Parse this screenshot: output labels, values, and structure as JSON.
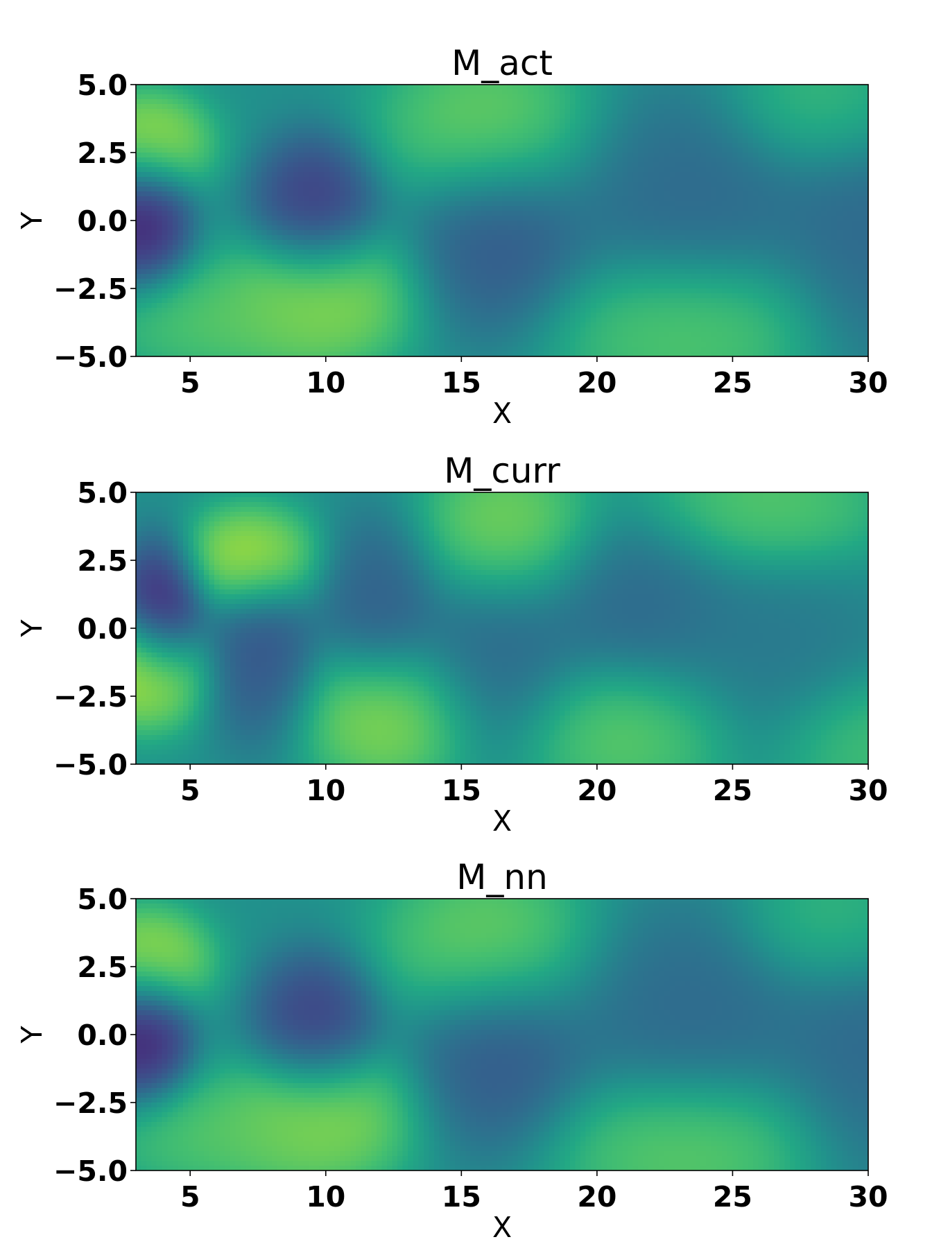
{
  "chart_data": [
    {
      "type": "heatmap",
      "title": "M_act",
      "xlabel": "X",
      "ylabel": "Y",
      "xlim": [
        3,
        30
      ],
      "ylim": [
        -5,
        5
      ],
      "xticks": [
        5,
        10,
        15,
        20,
        25,
        30
      ],
      "yticks": [
        5.0,
        2.5,
        0.0,
        -2.5,
        -5.0
      ],
      "xtick_labels": [
        "5",
        "10",
        "15",
        "20",
        "25",
        "30"
      ],
      "ytick_labels": [
        "5.0",
        "2.5",
        "0.0",
        "−2.5",
        "−5.0"
      ],
      "colormap": "viridis",
      "value_range": [
        0,
        1
      ],
      "background_value": 0.5,
      "features": [
        {
          "x": 3.4,
          "y": 2.8,
          "value": 1.0,
          "sx": 1.3,
          "sy": 1.1
        },
        {
          "x": 3.2,
          "y": 0.2,
          "value": 0.0,
          "sx": 1.0,
          "sy": 1.5
        },
        {
          "x": 9.6,
          "y": 0.4,
          "value": 0.08,
          "sx": 1.3,
          "sy": 1.5
        },
        {
          "x": 9.8,
          "y": -2.8,
          "value": 0.93,
          "sx": 2.0,
          "sy": 1.5
        },
        {
          "x": 6.0,
          "y": -3.8,
          "value": 0.78,
          "sx": 2.4,
          "sy": 1.1
        },
        {
          "x": 16.0,
          "y": 3.5,
          "value": 0.85,
          "sx": 2.2,
          "sy": 1.7
        },
        {
          "x": 16.4,
          "y": -0.9,
          "value": 0.22,
          "sx": 1.8,
          "sy": 2.0
        },
        {
          "x": 23.5,
          "y": 1.0,
          "value": 0.3,
          "sx": 2.8,
          "sy": 2.2
        },
        {
          "x": 23.2,
          "y": -4.0,
          "value": 0.8,
          "sx": 2.8,
          "sy": 1.6
        },
        {
          "x": 30.0,
          "y": -0.5,
          "value": 0.3,
          "sx": 1.8,
          "sy": 2.8
        },
        {
          "x": 28.5,
          "y": 4.2,
          "value": 0.75,
          "sx": 2.0,
          "sy": 1.4
        }
      ]
    },
    {
      "type": "heatmap",
      "title": "M_curr",
      "xlabel": "X",
      "ylabel": "Y",
      "xlim": [
        3,
        30
      ],
      "ylim": [
        -5,
        5
      ],
      "xticks": [
        5,
        10,
        15,
        20,
        25,
        30
      ],
      "yticks": [
        5.0,
        2.5,
        0.0,
        -2.5,
        -5.0
      ],
      "xtick_labels": [
        "5",
        "10",
        "15",
        "20",
        "25",
        "30"
      ],
      "ytick_labels": [
        "5.0",
        "2.5",
        "0.0",
        "−2.5",
        "−5.0"
      ],
      "colormap": "viridis",
      "value_range": [
        0,
        1
      ],
      "background_value": 0.5,
      "features": [
        {
          "x": 4.0,
          "y": 0.8,
          "value": 0.0,
          "sx": 0.9,
          "sy": 1.4
        },
        {
          "x": 3.4,
          "y": -1.6,
          "value": 1.0,
          "sx": 1.3,
          "sy": 1.2
        },
        {
          "x": 7.2,
          "y": 2.5,
          "value": 1.0,
          "sx": 1.4,
          "sy": 1.1
        },
        {
          "x": 7.6,
          "y": -1.0,
          "value": 0.2,
          "sx": 1.2,
          "sy": 1.8
        },
        {
          "x": 12.0,
          "y": 1.0,
          "value": 0.25,
          "sx": 1.3,
          "sy": 1.8
        },
        {
          "x": 12.3,
          "y": -3.2,
          "value": 0.92,
          "sx": 1.8,
          "sy": 1.5
        },
        {
          "x": 16.6,
          "y": 3.6,
          "value": 0.88,
          "sx": 1.8,
          "sy": 1.6
        },
        {
          "x": 16.3,
          "y": -1.0,
          "value": 0.3,
          "sx": 1.8,
          "sy": 2.0
        },
        {
          "x": 21.5,
          "y": 0.8,
          "value": 0.3,
          "sx": 2.0,
          "sy": 1.8
        },
        {
          "x": 21.0,
          "y": -3.8,
          "value": 0.82,
          "sx": 2.2,
          "sy": 1.5
        },
        {
          "x": 26.3,
          "y": 4.5,
          "value": 0.8,
          "sx": 2.4,
          "sy": 1.4
        },
        {
          "x": 26.5,
          "y": -0.8,
          "value": 0.38,
          "sx": 2.4,
          "sy": 2.0
        },
        {
          "x": 30.0,
          "y": -4.2,
          "value": 0.75,
          "sx": 1.8,
          "sy": 1.4
        }
      ]
    },
    {
      "type": "heatmap",
      "title": "M_nn",
      "xlabel": "X",
      "ylabel": "Y",
      "xlim": [
        3,
        30
      ],
      "ylim": [
        -5,
        5
      ],
      "xticks": [
        5,
        10,
        15,
        20,
        25,
        30
      ],
      "yticks": [
        5.0,
        2.5,
        0.0,
        -2.5,
        -5.0
      ],
      "xtick_labels": [
        "5",
        "10",
        "15",
        "20",
        "25",
        "30"
      ],
      "ytick_labels": [
        "5.0",
        "2.5",
        "0.0",
        "−2.5",
        "−5.0"
      ],
      "colormap": "viridis",
      "value_range": [
        0,
        1
      ],
      "background_value": 0.5,
      "features": [
        {
          "x": 3.4,
          "y": 2.7,
          "value": 1.0,
          "sx": 1.3,
          "sy": 1.1
        },
        {
          "x": 3.2,
          "y": 0.1,
          "value": 0.0,
          "sx": 1.0,
          "sy": 1.5
        },
        {
          "x": 9.6,
          "y": 0.3,
          "value": 0.1,
          "sx": 1.3,
          "sy": 1.5
        },
        {
          "x": 9.8,
          "y": -3.0,
          "value": 0.92,
          "sx": 2.0,
          "sy": 1.5
        },
        {
          "x": 6.0,
          "y": -3.8,
          "value": 0.78,
          "sx": 2.4,
          "sy": 1.1
        },
        {
          "x": 16.0,
          "y": 3.4,
          "value": 0.85,
          "sx": 2.2,
          "sy": 1.7
        },
        {
          "x": 16.4,
          "y": -1.0,
          "value": 0.22,
          "sx": 1.8,
          "sy": 2.0
        },
        {
          "x": 23.5,
          "y": 1.0,
          "value": 0.3,
          "sx": 2.8,
          "sy": 2.2
        },
        {
          "x": 23.2,
          "y": -4.2,
          "value": 0.82,
          "sx": 2.8,
          "sy": 1.6
        },
        {
          "x": 30.0,
          "y": -0.5,
          "value": 0.3,
          "sx": 1.8,
          "sy": 2.8
        },
        {
          "x": 29.0,
          "y": 4.0,
          "value": 0.75,
          "sx": 2.0,
          "sy": 1.4
        }
      ]
    }
  ]
}
